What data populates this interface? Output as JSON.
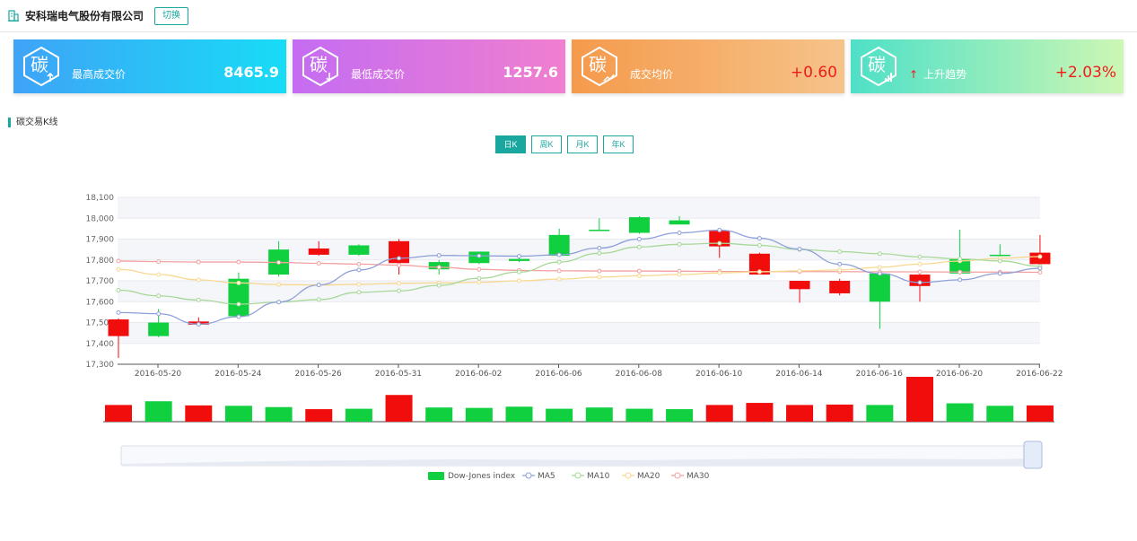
{
  "header": {
    "company": "安科瑞电气股份有限公司",
    "switch_label": "切换"
  },
  "cards": [
    {
      "label": "最高成交价",
      "value": "8465.9",
      "icon": "carbon-up-icon"
    },
    {
      "label": "最低成交价",
      "value": "1257.6",
      "icon": "carbon-down-icon"
    },
    {
      "label": "成交均价",
      "value": "+0.60",
      "icon": "carbon-chart-icon"
    },
    {
      "label": "上升趋势",
      "arrow": "↑",
      "value": "+2.03%",
      "icon": "carbon-bars-icon"
    }
  ],
  "carbon_char": "碳",
  "section": {
    "title": "碳交易K线"
  },
  "periods": [
    {
      "label": "日K",
      "active": true
    },
    {
      "label": "周K",
      "active": false
    },
    {
      "label": "月K",
      "active": false
    },
    {
      "label": "年K",
      "active": false
    }
  ],
  "colors": {
    "up": "#f20d0d",
    "down": "#10d040",
    "accent": "#1aa7a0",
    "ma5": "#8fa0d8",
    "ma10": "#a8d898",
    "ma20": "#f8d890",
    "ma30": "#f3a0a0"
  },
  "chart_data": {
    "type": "candlestick",
    "ylim": [
      17300,
      18100
    ],
    "yticks": [
      "17,300",
      "17,400",
      "17,500",
      "17,600",
      "17,700",
      "17,800",
      "17,900",
      "18,000",
      "18,100"
    ],
    "xtick_labels": [
      "2016-05-20",
      "2016-05-24",
      "2016-05-26",
      "2016-05-31",
      "2016-06-02",
      "2016-06-06",
      "2016-06-08",
      "2016-06-10",
      "2016-06-14",
      "2016-06-16",
      "2016-06-20",
      "2016-06-22"
    ],
    "candles": [
      {
        "open": 17435,
        "close": 17515,
        "low": 17330,
        "high": 17520
      },
      {
        "open": 17500,
        "close": 17435,
        "low": 17430,
        "high": 17565
      },
      {
        "open": 17490,
        "close": 17505,
        "low": 17485,
        "high": 17525
      },
      {
        "open": 17710,
        "close": 17530,
        "low": 17530,
        "high": 17740
      },
      {
        "open": 17850,
        "close": 17730,
        "low": 17720,
        "high": 17890
      },
      {
        "open": 17825,
        "close": 17855,
        "low": 17820,
        "high": 17890
      },
      {
        "open": 17870,
        "close": 17825,
        "low": 17820,
        "high": 17875
      },
      {
        "open": 17785,
        "close": 17890,
        "low": 17730,
        "high": 17900
      },
      {
        "open": 17790,
        "close": 17755,
        "low": 17730,
        "high": 17800
      },
      {
        "open": 17840,
        "close": 17785,
        "low": 17780,
        "high": 17840
      },
      {
        "open": 17805,
        "close": 17795,
        "low": 17790,
        "high": 17810
      },
      {
        "open": 17920,
        "close": 17820,
        "low": 17820,
        "high": 17950
      },
      {
        "open": 17945,
        "close": 17940,
        "low": 17940,
        "high": 18000
      },
      {
        "open": 18005,
        "close": 17930,
        "low": 17925,
        "high": 18010
      },
      {
        "open": 17990,
        "close": 17970,
        "low": 17970,
        "high": 18010
      },
      {
        "open": 17865,
        "close": 17940,
        "low": 17810,
        "high": 17945
      },
      {
        "open": 17730,
        "close": 17830,
        "low": 17730,
        "high": 17835
      },
      {
        "open": 17660,
        "close": 17700,
        "low": 17595,
        "high": 17700
      },
      {
        "open": 17640,
        "close": 17700,
        "low": 17630,
        "high": 17710
      },
      {
        "open": 17735,
        "close": 17600,
        "low": 17470,
        "high": 17740
      },
      {
        "open": 17675,
        "close": 17730,
        "low": 17600,
        "high": 17735
      },
      {
        "open": 17805,
        "close": 17735,
        "low": 17730,
        "high": 17945
      },
      {
        "open": 17825,
        "close": 17820,
        "low": 17800,
        "high": 17875
      },
      {
        "open": 17780,
        "close": 17835,
        "low": 17770,
        "high": 17920
      }
    ],
    "volumes": [
      80,
      98,
      78,
      76,
      70,
      60,
      62,
      128,
      68,
      66,
      72,
      62,
      68,
      62,
      60,
      80,
      90,
      80,
      82,
      80,
      215,
      88,
      76,
      78
    ],
    "ma5": [
      17548,
      17542,
      17492,
      17528,
      17598,
      17680,
      17752,
      17808,
      17822,
      17820,
      17818,
      17825,
      17857,
      17900,
      17930,
      17943,
      17904,
      17852,
      17780,
      17735,
      17692,
      17705,
      17735,
      17760
    ],
    "ma10": [
      17655,
      17628,
      17608,
      17588,
      17598,
      17610,
      17645,
      17652,
      17678,
      17712,
      17742,
      17790,
      17832,
      17862,
      17875,
      17880,
      17870,
      17850,
      17840,
      17830,
      17815,
      17805,
      17795,
      17770
    ],
    "ma20": [
      17755,
      17730,
      17705,
      17690,
      17682,
      17680,
      17683,
      17688,
      17690,
      17693,
      17700,
      17708,
      17718,
      17724,
      17730,
      17738,
      17743,
      17748,
      17752,
      17765,
      17780,
      17795,
      17808,
      17816
    ],
    "ma30": [
      17795,
      17792,
      17790,
      17790,
      17788,
      17784,
      17780,
      17775,
      17765,
      17755,
      17750,
      17748,
      17747,
      17747,
      17746,
      17745,
      17744,
      17744,
      17744,
      17743,
      17743,
      17742,
      17742,
      17741
    ],
    "legend": [
      "Dow-Jones index",
      "MA5",
      "MA10",
      "MA20",
      "MA30"
    ]
  }
}
